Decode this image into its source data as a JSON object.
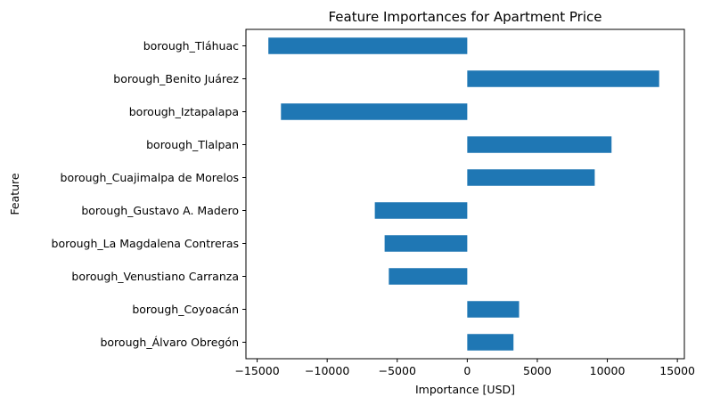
{
  "chart_data": {
    "type": "bar",
    "orientation": "horizontal",
    "title": "Feature Importances for Apartment Price",
    "xlabel": "Importance [USD]",
    "ylabel": "Feature",
    "xlim": [
      -15800,
      15500
    ],
    "xticks": [
      -15000,
      -10000,
      -5000,
      0,
      5000,
      10000,
      15000
    ],
    "xtick_labels": [
      "−15000",
      "−10000",
      "−5000",
      "0",
      "5000",
      "10000",
      "15000"
    ],
    "grid": false,
    "bar_color": "#1f77b4",
    "categories": [
      "borough_Tláhuac",
      "borough_Benito Juárez",
      "borough_Iztapalapa",
      "borough_Tlalpan",
      "borough_Cuajimalpa de Morelos",
      "borough_Gustavo A. Madero",
      "borough_La Magdalena Contreras",
      "borough_Venustiano Carranza",
      "borough_Coyoacán",
      "borough_Álvaro Obregón"
    ],
    "values": [
      -14200,
      13700,
      -13300,
      10300,
      9100,
      -6600,
      -5900,
      -5600,
      3700,
      3300
    ]
  }
}
